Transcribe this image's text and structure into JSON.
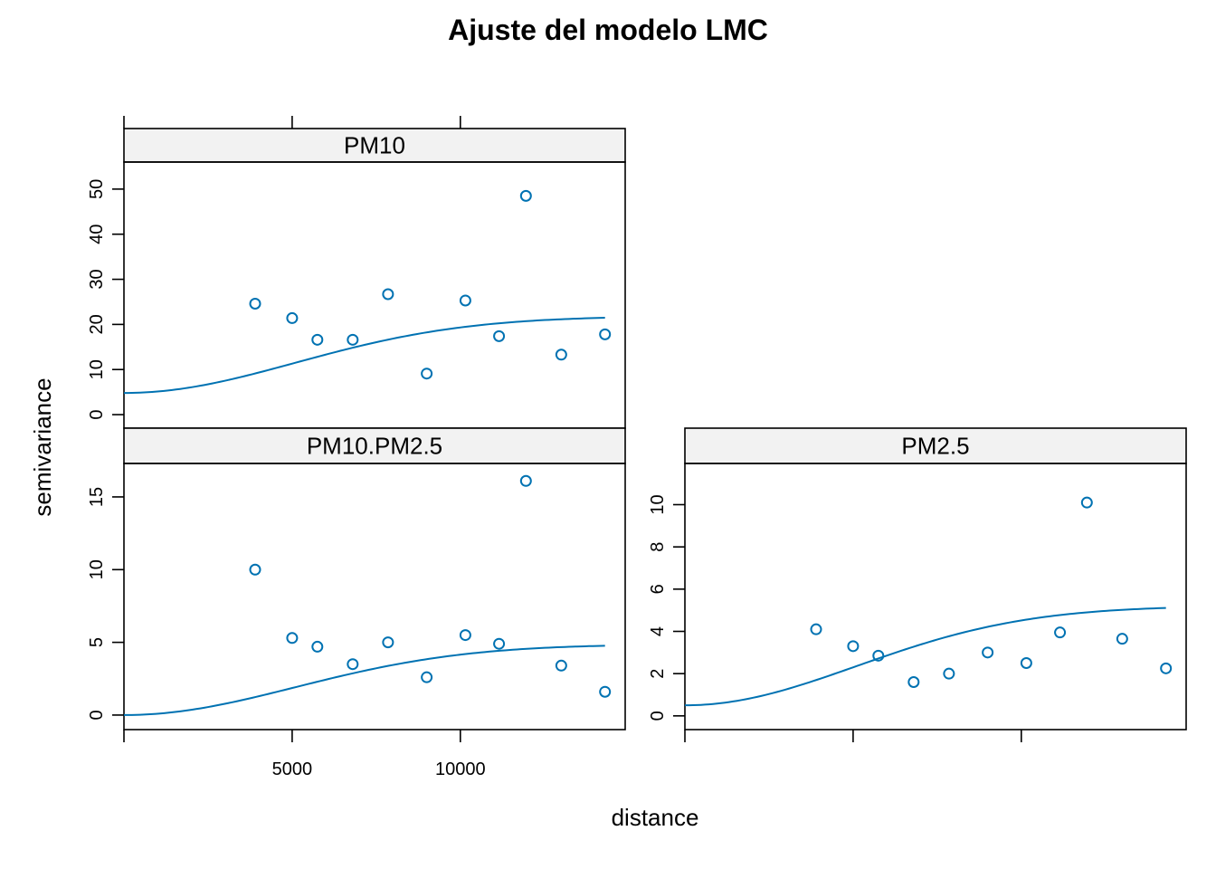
{
  "title": "Ajuste del modelo LMC",
  "xlabel": "distance",
  "ylabel": "semivariance",
  "colors": {
    "series": "#0072b2"
  },
  "chart_data": [
    {
      "type": "scatter",
      "panel": "PM10",
      "xlim": [
        0,
        14900
      ],
      "ylim": [
        -3,
        56
      ],
      "y_ticks": [
        0,
        10,
        20,
        30,
        40,
        50
      ],
      "top_ticks": [
        5000,
        10000
      ],
      "points": [
        {
          "x": 3900,
          "y": 24.6
        },
        {
          "x": 5000,
          "y": 21.4
        },
        {
          "x": 5750,
          "y": 16.6
        },
        {
          "x": 6800,
          "y": 16.6
        },
        {
          "x": 7850,
          "y": 26.7
        },
        {
          "x": 9000,
          "y": 9.1
        },
        {
          "x": 10150,
          "y": 25.3
        },
        {
          "x": 11150,
          "y": 17.4
        },
        {
          "x": 11950,
          "y": 48.5
        },
        {
          "x": 13000,
          "y": 13.3
        },
        {
          "x": 14300,
          "y": 17.8
        }
      ],
      "fit": {
        "nugget": 4.8,
        "psill": 17.0,
        "range": 7200,
        "xmax": 14300
      }
    },
    {
      "type": "scatter",
      "panel": "PM10.PM2.5",
      "xlim": [
        0,
        14900
      ],
      "ylim": [
        -1,
        17.3
      ],
      "y_ticks": [
        0,
        5,
        10,
        15
      ],
      "bottom_ticks": [
        5000,
        10000
      ],
      "points": [
        {
          "x": 3900,
          "y": 10.0
        },
        {
          "x": 5000,
          "y": 5.3
        },
        {
          "x": 5750,
          "y": 4.7
        },
        {
          "x": 6800,
          "y": 3.5
        },
        {
          "x": 7850,
          "y": 5.0
        },
        {
          "x": 9000,
          "y": 2.6
        },
        {
          "x": 10150,
          "y": 5.5
        },
        {
          "x": 11150,
          "y": 4.9
        },
        {
          "x": 11950,
          "y": 16.1
        },
        {
          "x": 13000,
          "y": 3.4
        },
        {
          "x": 14300,
          "y": 1.6
        }
      ],
      "fit": {
        "nugget": 0.0,
        "psill": 4.86,
        "range": 7200,
        "xmax": 14300
      }
    },
    {
      "type": "scatter",
      "panel": "PM2.5",
      "xlim": [
        0,
        14900
      ],
      "ylim": [
        -0.65,
        11.95
      ],
      "y_ticks": [
        0,
        2,
        4,
        6,
        8,
        10
      ],
      "bottom_ticks": [
        0,
        5000,
        10000
      ],
      "points": [
        {
          "x": 3900,
          "y": 4.1
        },
        {
          "x": 5000,
          "y": 3.3
        },
        {
          "x": 5750,
          "y": 2.85
        },
        {
          "x": 6800,
          "y": 1.6
        },
        {
          "x": 7850,
          "y": 2.0
        },
        {
          "x": 9000,
          "y": 3.0
        },
        {
          "x": 10150,
          "y": 2.5
        },
        {
          "x": 11150,
          "y": 3.95
        },
        {
          "x": 11950,
          "y": 10.1
        },
        {
          "x": 13000,
          "y": 3.65
        },
        {
          "x": 14300,
          "y": 2.25
        }
      ],
      "fit": {
        "nugget": 0.5,
        "psill": 4.7,
        "range": 7200,
        "xmax": 14300
      }
    }
  ]
}
